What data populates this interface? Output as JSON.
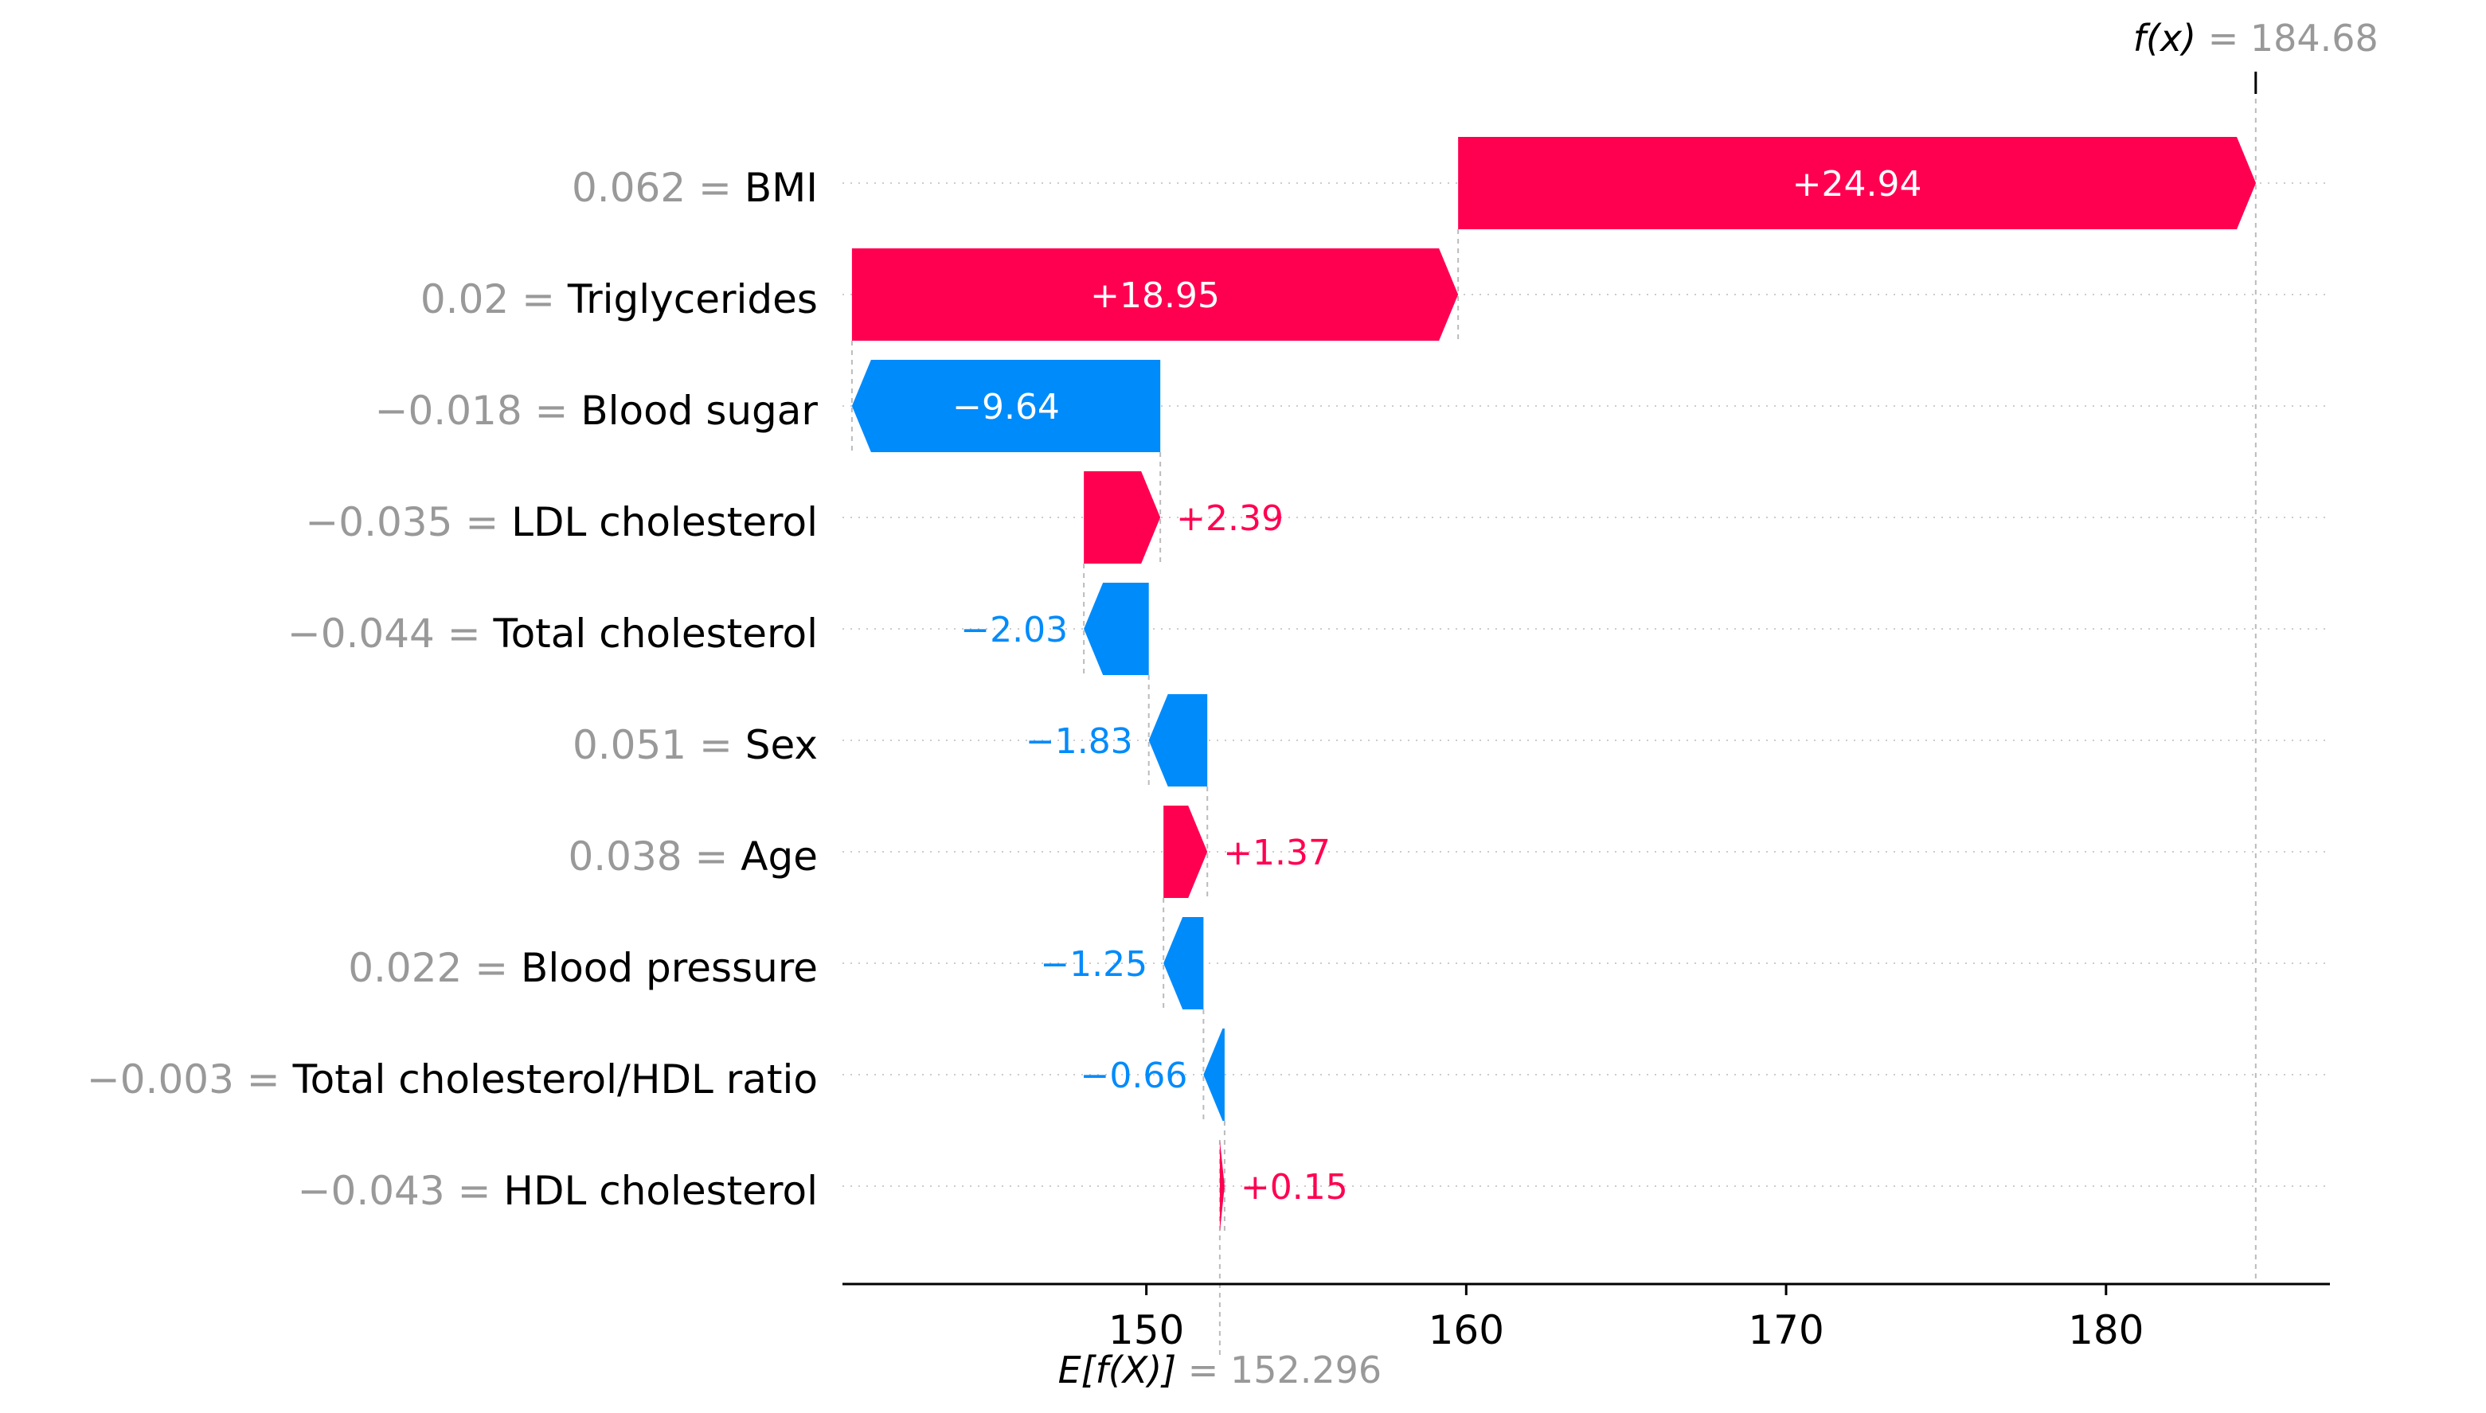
{
  "chart_data": {
    "type": "waterfall",
    "base_value": 152.296,
    "output_value": 184.68,
    "base_label": "E[f(X)]",
    "output_label": "f(x)",
    "base_value_text": "= 152.296",
    "output_value_text": "= 184.68",
    "xlim": [
      140.5,
      187
    ],
    "ticks": [
      150,
      160,
      170,
      180
    ],
    "tick_labels": [
      "150",
      "160",
      "170",
      "180"
    ],
    "features": [
      {
        "value": "0.062 =",
        "name": "BMI",
        "contribution": 24.94,
        "label": "+24.94"
      },
      {
        "value": "0.02 =",
        "name": "Triglycerides",
        "contribution": 18.95,
        "label": "+18.95"
      },
      {
        "value": "−0.018 =",
        "name": "Blood sugar",
        "contribution": -9.64,
        "label": "−9.64"
      },
      {
        "value": "−0.035 =",
        "name": "LDL cholesterol",
        "contribution": 2.39,
        "label": "+2.39"
      },
      {
        "value": "−0.044 =",
        "name": "Total cholesterol",
        "contribution": -2.03,
        "label": "−2.03"
      },
      {
        "value": "0.051 =",
        "name": "Sex",
        "contribution": -1.83,
        "label": "−1.83"
      },
      {
        "value": "0.038 =",
        "name": "Age",
        "contribution": 1.37,
        "label": "+1.37"
      },
      {
        "value": "0.022 =",
        "name": "Blood pressure",
        "contribution": -1.25,
        "label": "−1.25"
      },
      {
        "value": "−0.003 =",
        "name": "Total cholesterol/HDL ratio",
        "contribution": -0.66,
        "label": "−0.66"
      },
      {
        "value": "−0.043 =",
        "name": "HDL cholesterol",
        "contribution": 0.15,
        "label": "+0.15"
      }
    ],
    "colors": {
      "positive": "#ff0051",
      "negative": "#008bfb",
      "value_text": "#999999",
      "name_text": "#000000",
      "grid": "#cccccc"
    }
  }
}
